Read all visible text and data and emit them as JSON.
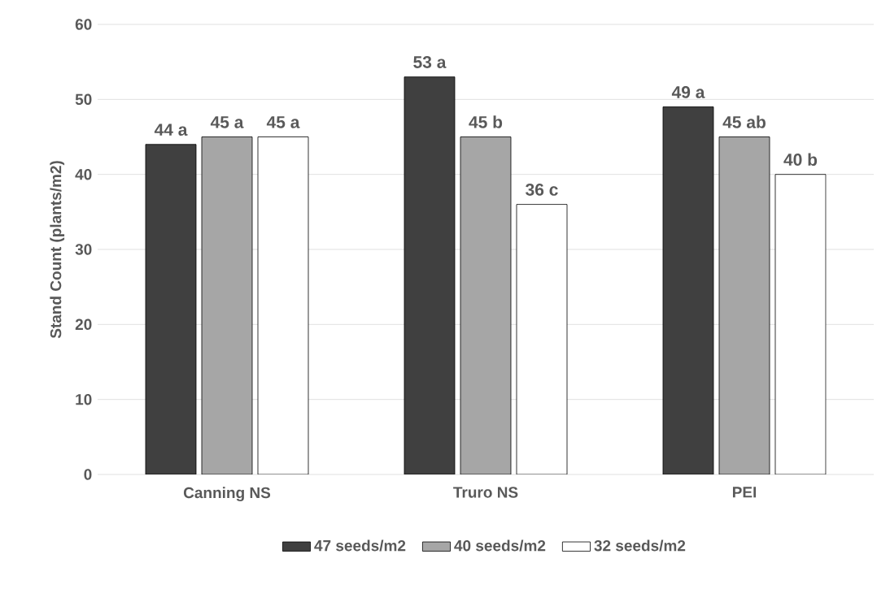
{
  "chart_data": {
    "type": "bar",
    "ylabel": "Stand Count (plants/m2)",
    "categories": [
      "Canning NS",
      "Truro NS",
      "PEI"
    ],
    "series": [
      {
        "name": "47 seeds/m2",
        "color": "#404040",
        "values": [
          44,
          53,
          49
        ],
        "value_labels": [
          "44 a",
          "53 a",
          "49 a"
        ]
      },
      {
        "name": "40 seeds/m2",
        "color": "#a6a6a6",
        "values": [
          45,
          45,
          45
        ],
        "value_labels": [
          "45 a",
          "45 b",
          "45 ab"
        ]
      },
      {
        "name": "32 seeds/m2",
        "color": "#ffffff",
        "values": [
          45,
          36,
          40
        ],
        "value_labels": [
          "45 a",
          "36 c",
          "40 b"
        ]
      }
    ],
    "ylim": [
      0,
      60
    ],
    "yticks": [
      0,
      10,
      20,
      30,
      40,
      50,
      60
    ],
    "grid": "y",
    "legend": "bottom"
  }
}
